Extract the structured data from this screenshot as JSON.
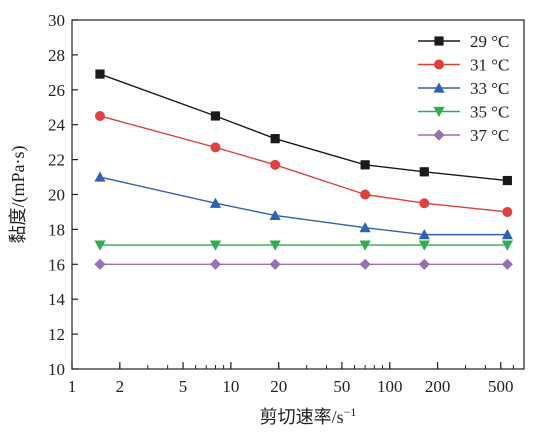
{
  "chart_data": {
    "type": "line",
    "x": [
      1.5,
      8,
      19,
      70,
      165,
      550
    ],
    "xscale": "log",
    "xlim": [
      1,
      700
    ],
    "ylim": [
      10,
      30
    ],
    "xticks": [
      1,
      2,
      5,
      10,
      20,
      50,
      100,
      200,
      500
    ],
    "xtick_labels": [
      "1",
      "2",
      "5",
      "10",
      "20",
      "50",
      "100",
      "200",
      "500"
    ],
    "yticks": [
      10,
      12,
      14,
      16,
      18,
      20,
      22,
      24,
      26,
      28,
      30
    ],
    "ytick_labels": [
      "10",
      "12",
      "14",
      "16",
      "18",
      "20",
      "22",
      "24",
      "26",
      "28",
      "30"
    ],
    "xlabel": "剪切速率/s",
    "xlabel_sup": "−1",
    "ylabel": "黏度/(mPa·s)",
    "grid": false,
    "legend": "top-right",
    "series": [
      {
        "name": "29 °C",
        "marker": "square",
        "color": "#1a1a1a",
        "values": [
          26.9,
          24.5,
          23.2,
          21.7,
          21.3,
          20.8
        ]
      },
      {
        "name": "31 °C",
        "marker": "circle",
        "color": "#e0413a",
        "values": [
          24.5,
          22.7,
          21.7,
          20.0,
          19.5,
          19.0
        ]
      },
      {
        "name": "33 °C",
        "marker": "triangle-up",
        "color": "#2e63b4",
        "values": [
          21.0,
          19.5,
          18.8,
          18.1,
          17.7,
          17.7
        ]
      },
      {
        "name": "35 °C",
        "marker": "triangle-down",
        "color": "#2fae4d",
        "values": [
          17.1,
          17.1,
          17.1,
          17.1,
          17.1,
          17.1
        ]
      },
      {
        "name": "37 °C",
        "marker": "diamond",
        "color": "#9b6fb5",
        "values": [
          16.0,
          16.0,
          16.0,
          16.0,
          16.0,
          16.0
        ]
      }
    ]
  }
}
